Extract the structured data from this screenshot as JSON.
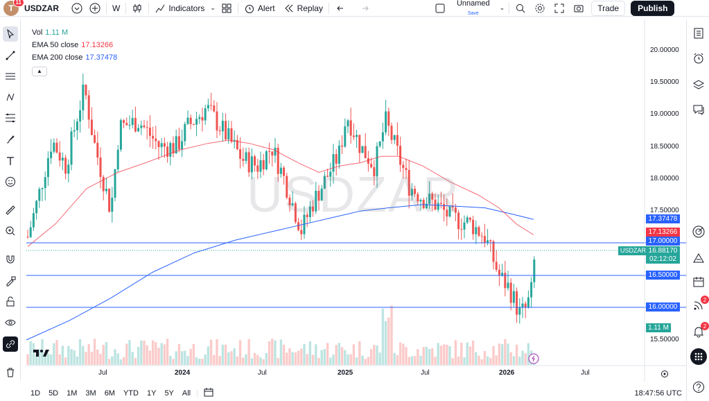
{
  "topbar": {
    "avatar_letter": "T",
    "avatar_badge": "11",
    "symbol": "USDZAR",
    "interval": "W",
    "indicators_label": "Indicators",
    "alert_label": "Alert",
    "replay_label": "Replay",
    "layout_name": "Unnamed",
    "layout_status": "Save",
    "trade_label": "Trade",
    "publish_label": "Publish"
  },
  "legend": {
    "vol_label": "Vol",
    "vol_value": "1.11 M",
    "ema50_label": "EMA 50 close",
    "ema50_value": "17.13266",
    "ema200_label": "EMA 200 close",
    "ema200_value": "17.37478"
  },
  "watermark": "USDZAR",
  "price_axis": {
    "ticks": [
      "20.00000",
      "19.50000",
      "19.00000",
      "18.50000",
      "18.00000",
      "17.50000",
      "15.50000"
    ],
    "tags": {
      "ema200": "17.37478",
      "ema50": "17.13266",
      "line_17": "17.00000",
      "current": "16.88170",
      "countdown": "02:12:02",
      "line_16_5": "16.50000",
      "line_16": "16.00000",
      "volume": "1.11 M"
    },
    "symbol_tag": "USDZAR"
  },
  "time_axis": [
    "Jul",
    "2024",
    "Jul",
    "2025",
    "Jul",
    "2026",
    "Jul"
  ],
  "bottombar": {
    "ranges": [
      "1D",
      "5D",
      "1M",
      "3M",
      "6M",
      "YTD",
      "1Y",
      "5Y",
      "All"
    ],
    "clock": "18:47:56 UTC"
  },
  "colors": {
    "up": "#26a69a",
    "down": "#ef5350",
    "ema50": "#f23645",
    "ema200": "#2962ff",
    "hline": "#2962ff"
  },
  "right_badges": {
    "alerts": "2",
    "notifications": "2"
  }
}
